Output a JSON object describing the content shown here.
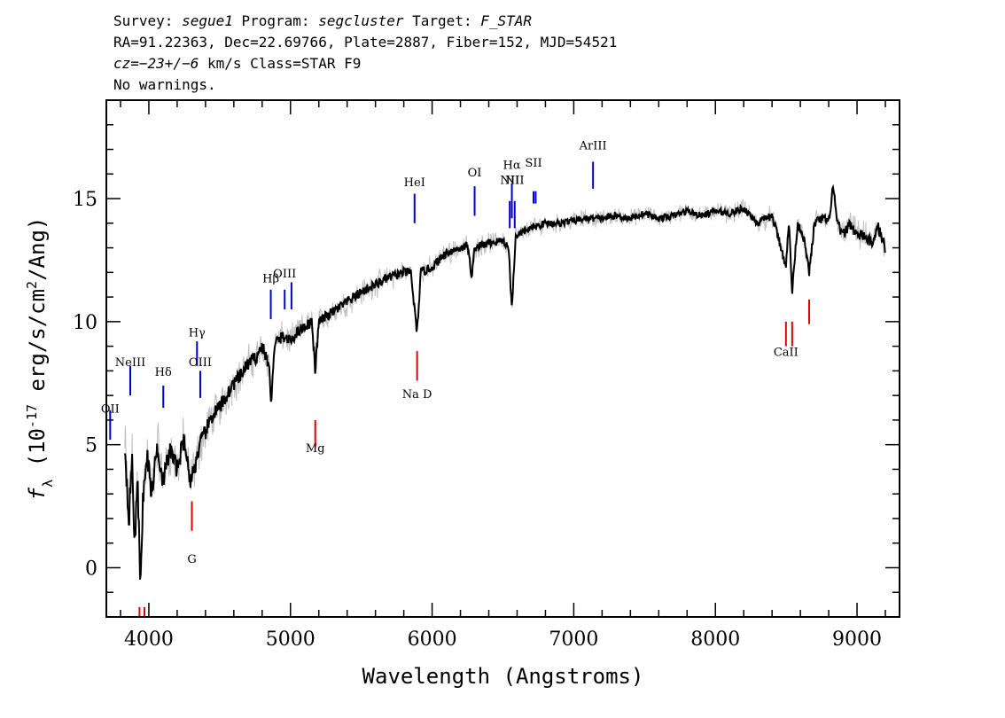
{
  "header": {
    "line1": {
      "survey_label": "Survey: ",
      "survey": "segue1",
      "program_label": " Program: ",
      "program": "segcluster",
      "target_label": " Target: ",
      "target": "F_STAR"
    },
    "line2": "RA=91.22363, Dec=22.69766, Plate=2887, Fiber=152, MJD=54521",
    "line3": {
      "cz": "cz=−23+/−6",
      "rest": " km/s Class=STAR F9"
    },
    "line4": "No warnings."
  },
  "chart_data": {
    "type": "line",
    "xlabel": "Wavelength (Angstroms)",
    "ylabel": "f_λ (10^-17 erg/s/cm^2/Ang)",
    "xlim": [
      3700,
      9300
    ],
    "ylim": [
      -2,
      19
    ],
    "xticks": [
      4000,
      5000,
      6000,
      7000,
      8000,
      9000
    ],
    "yticks": [
      0,
      5,
      10,
      15
    ],
    "series": [
      {
        "role": "flux",
        "color": "#000000",
        "points": [
          [
            3830,
            5.0
          ],
          [
            3860,
            2.0
          ],
          [
            3880,
            4.5
          ],
          [
            3900,
            1.0
          ],
          [
            3920,
            3.5
          ],
          [
            3940,
            -0.5
          ],
          [
            3960,
            3.0
          ],
          [
            3990,
            4.5
          ],
          [
            4020,
            3.0
          ],
          [
            4060,
            5.0
          ],
          [
            4100,
            3.5
          ],
          [
            4150,
            4.8
          ],
          [
            4200,
            4.0
          ],
          [
            4250,
            5.3
          ],
          [
            4290,
            3.5
          ],
          [
            4320,
            4.0
          ],
          [
            4360,
            5.0
          ],
          [
            4400,
            5.5
          ],
          [
            4450,
            6.2
          ],
          [
            4500,
            6.5
          ],
          [
            4550,
            7.0
          ],
          [
            4600,
            7.5
          ],
          [
            4650,
            7.8
          ],
          [
            4700,
            8.3
          ],
          [
            4750,
            8.5
          ],
          [
            4800,
            9.0
          ],
          [
            4850,
            8.2
          ],
          [
            4861,
            6.5
          ],
          [
            4880,
            8.5
          ],
          [
            4900,
            9.2
          ],
          [
            4950,
            9.4
          ],
          [
            5000,
            9.2
          ],
          [
            5050,
            9.6
          ],
          [
            5100,
            9.8
          ],
          [
            5150,
            10.0
          ],
          [
            5175,
            8.0
          ],
          [
            5200,
            10.0
          ],
          [
            5300,
            10.4
          ],
          [
            5400,
            10.8
          ],
          [
            5500,
            11.2
          ],
          [
            5600,
            11.5
          ],
          [
            5700,
            11.8
          ],
          [
            5800,
            12.0
          ],
          [
            5850,
            12.0
          ],
          [
            5893,
            9.5
          ],
          [
            5920,
            12.0
          ],
          [
            6000,
            12.2
          ],
          [
            6100,
            12.8
          ],
          [
            6200,
            13.0
          ],
          [
            6250,
            13.1
          ],
          [
            6280,
            11.8
          ],
          [
            6300,
            13.0
          ],
          [
            6400,
            13.2
          ],
          [
            6500,
            13.3
          ],
          [
            6540,
            13.0
          ],
          [
            6563,
            10.5
          ],
          [
            6590,
            13.5
          ],
          [
            6700,
            13.8
          ],
          [
            6800,
            14.0
          ],
          [
            6900,
            14.0
          ],
          [
            7000,
            14.1
          ],
          [
            7100,
            14.2
          ],
          [
            7200,
            14.2
          ],
          [
            7300,
            14.3
          ],
          [
            7400,
            14.2
          ],
          [
            7500,
            14.4
          ],
          [
            7600,
            14.2
          ],
          [
            7700,
            14.3
          ],
          [
            7800,
            14.5
          ],
          [
            7900,
            14.3
          ],
          [
            8000,
            14.5
          ],
          [
            8100,
            14.4
          ],
          [
            8200,
            14.6
          ],
          [
            8300,
            14.0
          ],
          [
            8400,
            14.3
          ],
          [
            8498,
            12.3
          ],
          [
            8520,
            14.0
          ],
          [
            8542,
            11.2
          ],
          [
            8580,
            14.0
          ],
          [
            8620,
            13.5
          ],
          [
            8662,
            12.0
          ],
          [
            8700,
            14.0
          ],
          [
            8760,
            14.2
          ],
          [
            8800,
            14.0
          ],
          [
            8830,
            15.5
          ],
          [
            8860,
            14.0
          ],
          [
            8900,
            13.5
          ],
          [
            8950,
            14.0
          ],
          [
            9000,
            13.5
          ],
          [
            9050,
            13.5
          ],
          [
            9100,
            13.2
          ],
          [
            9150,
            13.8
          ],
          [
            9200,
            13.0
          ]
        ]
      },
      {
        "role": "noise-envelope",
        "color": "#c0c0c0",
        "amplitude_anchors": [
          [
            3830,
            2.5
          ],
          [
            4000,
            2.0
          ],
          [
            4400,
            1.5
          ],
          [
            5000,
            1.0
          ],
          [
            6000,
            0.8
          ],
          [
            7000,
            0.6
          ],
          [
            8000,
            0.6
          ],
          [
            8800,
            0.9
          ],
          [
            9200,
            1.1
          ]
        ]
      }
    ],
    "emission_lines": [
      {
        "label": "OII",
        "x": 3727,
        "y_range": [
          5.2,
          6.4
        ],
        "label_y": 6.3
      },
      {
        "label": "NeIII",
        "x": 3869,
        "y_range": [
          7.0,
          8.2
        ],
        "label_y": 8.2
      },
      {
        "label": "Hδ",
        "x": 4102,
        "y_range": [
          6.5,
          7.4
        ],
        "label_y": 7.8
      },
      {
        "label": "Hγ",
        "x": 4340,
        "y_range": [
          8.2,
          9.2
        ],
        "label_y": 9.4
      },
      {
        "label": "OIII",
        "x": 4363,
        "y_range": [
          6.9,
          8.0
        ],
        "label_y": 8.2
      },
      {
        "label": "Hβ",
        "x": 4861,
        "y_range": [
          10.1,
          11.3
        ],
        "label_y": 11.6
      },
      {
        "label": "OIII",
        "x": 4959,
        "y_range": [
          10.5,
          11.3
        ],
        "label_y": 11.8
      },
      {
        "label": "OIII",
        "x": 5007,
        "y_range": [
          10.5,
          11.6
        ],
        "label_y": null
      },
      {
        "label": "HeI",
        "x": 5876,
        "y_range": [
          14.0,
          15.2
        ],
        "label_y": 15.5
      },
      {
        "label": "OI",
        "x": 6300,
        "y_range": [
          14.3,
          15.5
        ],
        "label_y": 15.9
      },
      {
        "label": "NII",
        "x": 6548,
        "y_range": [
          13.8,
          14.9
        ],
        "label_y": 15.6
      },
      {
        "label": "Hα",
        "x": 6563,
        "y_range": [
          14.2,
          15.6
        ],
        "label_y": 16.2
      },
      {
        "label": "NII",
        "x": 6583,
        "y_range": [
          13.8,
          14.9
        ],
        "label_y": 15.6
      },
      {
        "label": "SII",
        "x": 6716,
        "y_range": [
          14.8,
          15.3
        ],
        "label_y": 16.3
      },
      {
        "label": "SII",
        "x": 6731,
        "y_range": [
          14.8,
          15.3
        ],
        "label_y": null
      },
      {
        "label": "ArIII",
        "x": 7136,
        "y_range": [
          15.4,
          16.5
        ],
        "label_y": 17.0
      }
    ],
    "absorption_lines": [
      {
        "label": "G",
        "x": 4304,
        "y_range": [
          1.5,
          2.7
        ],
        "label_y": 0.2
      },
      {
        "label": "Mg",
        "x": 5175,
        "y_range": [
          4.9,
          6.0
        ],
        "label_y": 4.7
      },
      {
        "label": "Na D",
        "x": 5894,
        "y_range": [
          7.6,
          8.8
        ],
        "label_y": 6.9
      },
      {
        "label": "CaII",
        "x": 8498,
        "y_range": [
          9.0,
          10.0
        ],
        "label_y": 8.6
      },
      {
        "label": "CaII",
        "x": 8542,
        "y_range": [
          9.0,
          10.0
        ],
        "label_y": null
      },
      {
        "label": "CaII",
        "x": 8662,
        "y_range": [
          9.9,
          10.9
        ],
        "label_y": null
      },
      {
        "label": "H",
        "x": 3934,
        "y_range": [
          -2.0,
          -1.6
        ],
        "label_y": null
      },
      {
        "label": "K",
        "x": 3969,
        "y_range": [
          -2.0,
          -1.6
        ],
        "label_y": null
      }
    ],
    "colors": {
      "emission": "#0000cc",
      "absorption": "#dd0000",
      "noise": "#c0c0c0",
      "flux": "#000000"
    }
  }
}
